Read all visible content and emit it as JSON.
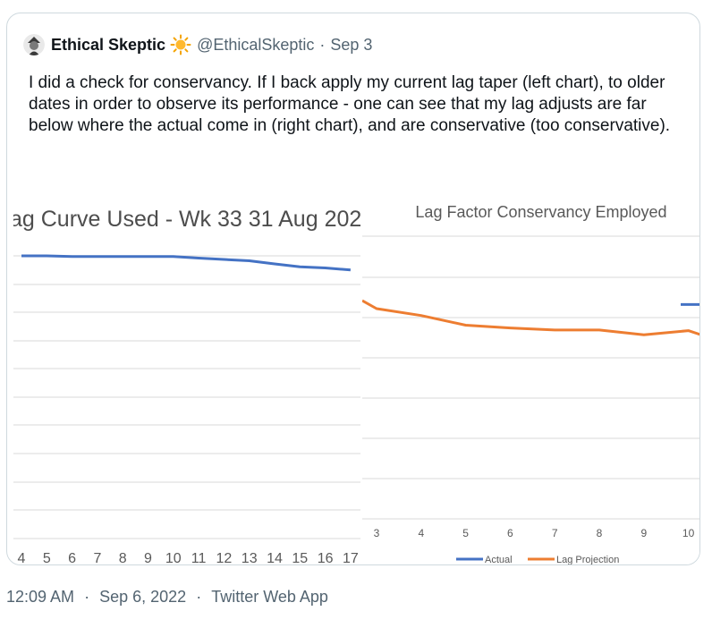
{
  "tweet": {
    "author_name": "Ethical Skeptic",
    "author_emoji_icon": "sun-icon",
    "handle": "@EthicalSkeptic",
    "separator": "·",
    "date": "Sep 3",
    "text": "I did a check for conservancy. If I back apply my current lag taper (left chart), to older dates in order to observe its performance - one can see that my lag adjusts are far below where the actual come in (right chart), and are conservative (too conservative)."
  },
  "footer": {
    "time": "12:09 AM",
    "separator": "·",
    "date": "Sep 6, 2022",
    "app": "Twitter Web App"
  },
  "colors": {
    "actual": "#4472c4",
    "lag_projection": "#ed7d31",
    "gridline": "#d9d9d9",
    "axis_text": "#595959"
  },
  "chart_data": [
    {
      "type": "line",
      "title": "ag Curve Used - Wk 33 31 Aug 202",
      "categories": [
        "4",
        "5",
        "6",
        "7",
        "8",
        "9",
        "10",
        "11",
        "12",
        "13",
        "14",
        "15",
        "16",
        "17"
      ],
      "series": [
        {
          "values": [
            0,
            0,
            0.3,
            0.3,
            0.3,
            0.3,
            0.3,
            1.0,
            1.6,
            2.2,
            3.6,
            4.9,
            5.4,
            6.3
          ]
        }
      ],
      "grid": true
    },
    {
      "type": "line",
      "title": "Lag Factor Conservancy Employed",
      "categories": [
        "3",
        "4",
        "5",
        "6",
        "7",
        "8",
        "9",
        "10"
      ],
      "series": [
        {
          "name": "Actual",
          "values": [
            null,
            null,
            null,
            null,
            null,
            null,
            null,
            50
          ]
        },
        {
          "name": "Lag Projection",
          "values": [
            47,
            42,
            35,
            33,
            31.5,
            31.5,
            28,
            31
          ]
        }
      ],
      "legend": "bottom",
      "grid": true
    }
  ]
}
